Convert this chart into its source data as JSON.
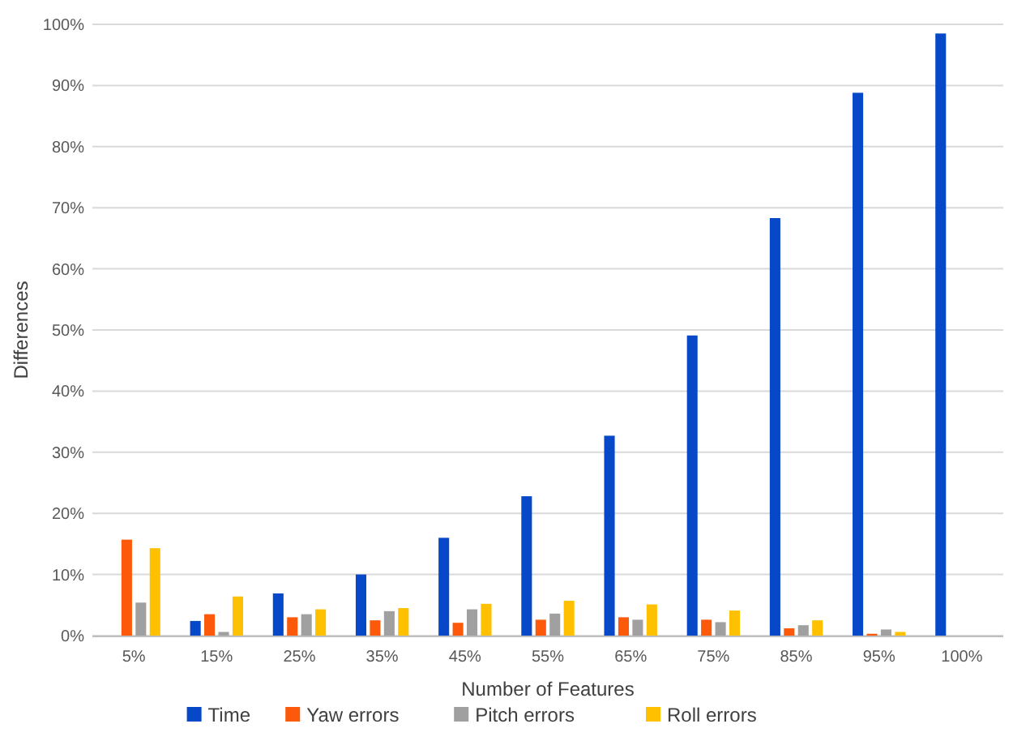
{
  "chart_data": {
    "type": "bar",
    "xlabel": "Number of Features",
    "ylabel": "Differences",
    "categories": [
      "5%",
      "15%",
      "25%",
      "35%",
      "45%",
      "55%",
      "65%",
      "75%",
      "85%",
      "95%",
      "100%"
    ],
    "series": [
      {
        "name": "Time",
        "color": "#0648c8",
        "values": [
          0,
          2.4,
          6.9,
          10.0,
          16.0,
          22.8,
          32.7,
          49.1,
          68.3,
          88.8,
          98.5
        ]
      },
      {
        "name": "Yaw errors",
        "color": "#fc5a0a",
        "values": [
          15.7,
          3.5,
          3.0,
          2.5,
          2.1,
          2.6,
          3.0,
          2.6,
          1.2,
          0.3,
          null
        ]
      },
      {
        "name": "Pitch errors",
        "color": "#a0a0a0",
        "values": [
          5.4,
          0.6,
          3.5,
          4.0,
          4.3,
          3.6,
          2.6,
          2.2,
          1.7,
          1.0,
          null
        ]
      },
      {
        "name": "Roll errors",
        "color": "#ffc000",
        "values": [
          14.3,
          6.4,
          4.3,
          4.5,
          5.2,
          5.7,
          5.1,
          4.1,
          2.5,
          0.6,
          null
        ]
      }
    ],
    "ylim": [
      0,
      100
    ],
    "yticks": [
      {
        "value": 0,
        "label": "0%"
      },
      {
        "value": 10,
        "label": "10%"
      },
      {
        "value": 20,
        "label": "20%"
      },
      {
        "value": 30,
        "label": "30%"
      },
      {
        "value": 40,
        "label": "40%"
      },
      {
        "value": 50,
        "label": "50%"
      },
      {
        "value": 60,
        "label": "60%"
      },
      {
        "value": 70,
        "label": "70%"
      },
      {
        "value": 80,
        "label": "80%"
      },
      {
        "value": 90,
        "label": "90%"
      },
      {
        "value": 100,
        "label": "100%"
      }
    ],
    "grid": "y",
    "legend": "bottom"
  }
}
